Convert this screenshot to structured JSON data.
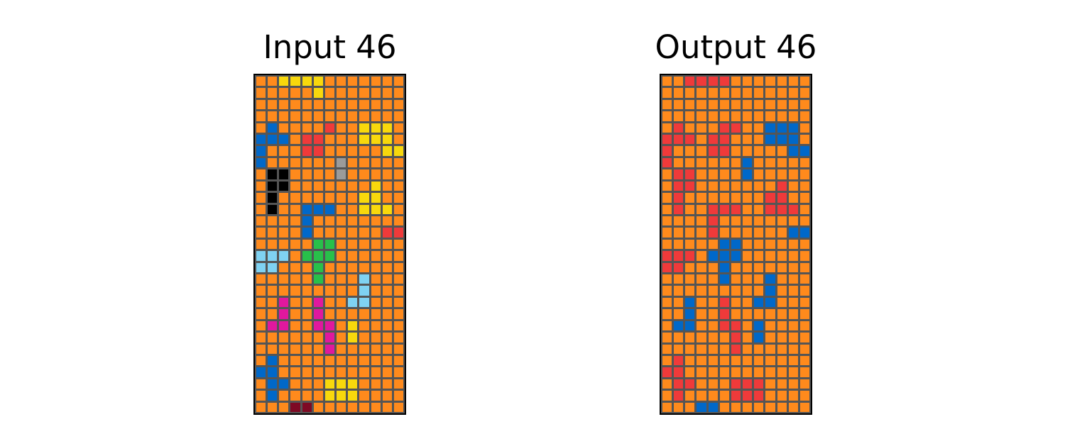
{
  "palette": {
    "0": "#000000",
    "1": "#0068c9",
    "2": "#ef3a3a",
    "3": "#28c04a",
    "4": "#f8d80c",
    "5": "#9b9b9b",
    "6": "#e0189e",
    "7": "#ff8a1c",
    "8": "#7fd2f2",
    "9": "#7e0a24"
  },
  "grid_line_color": "#555555",
  "panels": [
    {
      "title": "Input 46",
      "rows": [
        "7747777777777",
        "7777777777777",
        "7777777777777",
        "7777777777777",
        "7177777777777",
        "1117227777777",
        "1777227777777",
        "1777775777777",
        "7007775777777",
        "7007777777777",
        "7077777777777",
        "7077111777777",
        "7777177777777",
        "7777177777777",
        "7777733777777",
        "8887333777777",
        "8877737777777",
        "7777737777777",
        "7777777777777",
        "7767767777777",
        "7767767777777",
        "7667766777777",
        "7777776777777",
        "7777776777777",
        "7177777777777",
        "1177777777777",
        "7117777777777",
        "7177777777777",
        "7779977777777"
      ],
      "overrides": [
        [
          0,
          3,
          4
        ],
        [
          0,
          4,
          4
        ],
        [
          0,
          5,
          4
        ],
        [
          1,
          5,
          4
        ],
        [
          4,
          9,
          4
        ],
        [
          4,
          10,
          4
        ],
        [
          4,
          11,
          4
        ],
        [
          5,
          9,
          4
        ],
        [
          5,
          10,
          4
        ],
        [
          5,
          11,
          4
        ],
        [
          6,
          11,
          4
        ],
        [
          6,
          12,
          4
        ],
        [
          4,
          6,
          2
        ],
        [
          9,
          10,
          4
        ],
        [
          10,
          9,
          4
        ],
        [
          10,
          10,
          4
        ],
        [
          11,
          9,
          4
        ],
        [
          11,
          10,
          4
        ],
        [
          11,
          11,
          4
        ],
        [
          13,
          11,
          2
        ],
        [
          13,
          12,
          2
        ],
        [
          17,
          9,
          8
        ],
        [
          18,
          9,
          8
        ],
        [
          19,
          8,
          8
        ],
        [
          19,
          9,
          8
        ],
        [
          21,
          8,
          4
        ],
        [
          22,
          8,
          4
        ],
        [
          26,
          6,
          4
        ],
        [
          26,
          7,
          4
        ],
        [
          26,
          8,
          4
        ],
        [
          27,
          6,
          4
        ],
        [
          27,
          7,
          4
        ],
        [
          27,
          8,
          4
        ],
        [
          7,
          7,
          5
        ],
        [
          8,
          7,
          5
        ],
        [
          7,
          6,
          7
        ],
        [
          8,
          6,
          7
        ]
      ]
    },
    {
      "title": "Output 46",
      "rows": [
        "7727227777777",
        "7777777777777",
        "7777777777777",
        "7777777777777",
        "7277727777777",
        "2227227777777",
        "2777227777777",
        "2777777777777",
        "7227777777777",
        "7227777777777",
        "7277777777777",
        "7277222777777",
        "7777277777777",
        "7777277777777",
        "7777711777777",
        "2227111777777",
        "2277717777777",
        "7777717777777",
        "7777777777777",
        "7717727777777",
        "7717727777777",
        "7117722777777",
        "7777772777777",
        "7777772777777",
        "7277777777777",
        "2277777777777",
        "7227777777777",
        "7277777777777",
        "7771177777777"
      ],
      "overrides": [
        [
          0,
          3,
          2
        ],
        [
          0,
          4,
          2
        ],
        [
          0,
          5,
          2
        ],
        [
          1,
          5,
          7
        ],
        [
          4,
          9,
          1
        ],
        [
          4,
          10,
          1
        ],
        [
          4,
          11,
          1
        ],
        [
          5,
          9,
          1
        ],
        [
          5,
          10,
          1
        ],
        [
          5,
          11,
          1
        ],
        [
          6,
          11,
          1
        ],
        [
          6,
          12,
          1
        ],
        [
          4,
          6,
          2
        ],
        [
          7,
          7,
          1
        ],
        [
          8,
          7,
          1
        ],
        [
          7,
          6,
          7
        ],
        [
          8,
          6,
          7
        ],
        [
          9,
          10,
          2
        ],
        [
          10,
          9,
          2
        ],
        [
          10,
          10,
          2
        ],
        [
          11,
          9,
          2
        ],
        [
          11,
          10,
          2
        ],
        [
          11,
          11,
          2
        ],
        [
          13,
          11,
          1
        ],
        [
          13,
          12,
          1
        ],
        [
          17,
          9,
          1
        ],
        [
          18,
          9,
          1
        ],
        [
          19,
          8,
          1
        ],
        [
          19,
          9,
          1
        ],
        [
          21,
          8,
          1
        ],
        [
          22,
          8,
          1
        ],
        [
          26,
          6,
          2
        ],
        [
          26,
          7,
          2
        ],
        [
          26,
          8,
          2
        ],
        [
          27,
          6,
          2
        ],
        [
          27,
          7,
          2
        ],
        [
          27,
          8,
          2
        ]
      ]
    }
  ]
}
